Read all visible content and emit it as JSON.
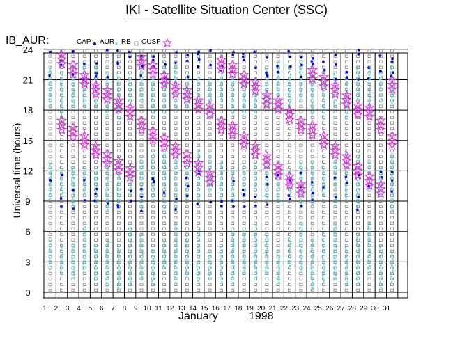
{
  "header": {
    "title": "IKI - Satellite Situation Center (SSC)",
    "panel_name": "IB_AUR:"
  },
  "legend": {
    "cap": "CAP",
    "aur": "AUR",
    "rb": "RB",
    "cusp": "CUSP"
  },
  "colors": {
    "cap": "#0000cc",
    "aur": "#33cccc",
    "rb": "#808080",
    "cusp": "#dd33dd",
    "axis": "#000000"
  },
  "chart_data": {
    "type": "scatter",
    "title": "IKI - Satellite Situation Center (SSC)",
    "ylabel": "Universal time  (hours)",
    "xlabel_month": "January",
    "xlabel_year": "1998",
    "x_ticks": [
      1,
      2,
      3,
      4,
      5,
      6,
      7,
      8,
      9,
      10,
      11,
      12,
      13,
      14,
      15,
      16,
      17,
      18,
      19,
      20,
      21,
      22,
      23,
      24,
      25,
      26,
      27,
      28,
      29,
      30,
      31
    ],
    "y_ticks": [
      0,
      3,
      6,
      9,
      12,
      15,
      18,
      21,
      24
    ],
    "xlim": [
      1,
      32
    ],
    "ylim": [
      0,
      24
    ],
    "grid": true,
    "series": [
      {
        "name": "CUSP",
        "x": [
          2,
          2,
          3,
          4,
          5,
          6,
          7,
          8,
          9,
          10,
          11,
          12,
          13,
          14,
          15,
          16,
          17,
          18,
          19,
          20,
          21,
          22,
          23,
          24,
          25,
          26,
          27,
          28,
          29,
          30,
          31
        ],
        "y": [
          23.0,
          16.5,
          15.8,
          15.0,
          14.0,
          13.2,
          12.5,
          11.8,
          16.5,
          15.5,
          14.8,
          14.0,
          13.2,
          12.3,
          11.3,
          16.5,
          16.0,
          15.0,
          14.0,
          13.0,
          12.0,
          11.0,
          10.2,
          16.0,
          15.0,
          14.0,
          13.0,
          12.0,
          11.0,
          10.2,
          15.0
        ]
      },
      {
        "name": "CUSP",
        "x": [
          3,
          4,
          5,
          6,
          7,
          8,
          9,
          10,
          11,
          12,
          13,
          14,
          15,
          16,
          17,
          18,
          19,
          20,
          21,
          22,
          23,
          24,
          25,
          26,
          27,
          28,
          29,
          30,
          31
        ],
        "y": [
          22.0,
          21.0,
          20.0,
          19.5,
          18.5,
          17.8,
          22.8,
          22.0,
          21.0,
          20.0,
          19.5,
          18.5,
          18.0,
          22.5,
          22.0,
          21.0,
          20.3,
          19.0,
          18.5,
          17.5,
          16.5,
          21.5,
          20.8,
          20.0,
          19.0,
          18.0,
          17.8,
          16.5,
          20.5
        ]
      }
    ]
  }
}
